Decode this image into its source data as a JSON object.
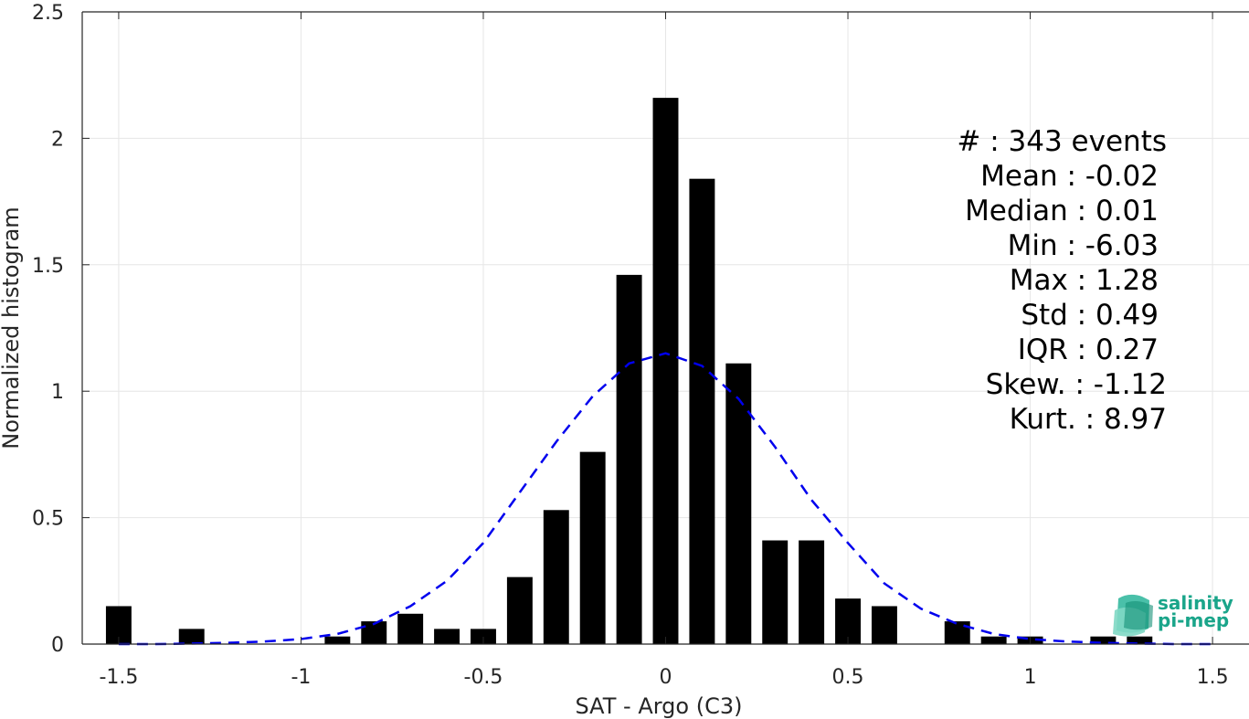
{
  "chart_data": {
    "type": "bar",
    "xlabel": "SAT - Argo (C3)",
    "ylabel": "Normalized histogram",
    "xlim": [
      -1.6,
      1.6
    ],
    "ylim": [
      0,
      2.5
    ],
    "x_ticks": [
      -1.5,
      -1,
      -0.5,
      0,
      0.5,
      1,
      1.5
    ],
    "x_tick_labels": [
      "-1.5",
      "-1",
      "-0.5",
      "0",
      "0.5",
      "1",
      "1.5"
    ],
    "y_ticks": [
      0,
      0.5,
      1,
      1.5,
      2,
      2.5
    ],
    "y_tick_labels": [
      "0",
      "0.5",
      "1",
      "1.5",
      "2",
      "2.5"
    ],
    "grid": true,
    "bar_width": 0.07,
    "bars": [
      {
        "x": -1.5,
        "y": 0.15
      },
      {
        "x": -1.3,
        "y": 0.06
      },
      {
        "x": -0.9,
        "y": 0.03
      },
      {
        "x": -0.8,
        "y": 0.09
      },
      {
        "x": -0.7,
        "y": 0.12
      },
      {
        "x": -0.6,
        "y": 0.06
      },
      {
        "x": -0.5,
        "y": 0.06
      },
      {
        "x": -0.4,
        "y": 0.265
      },
      {
        "x": -0.3,
        "y": 0.53
      },
      {
        "x": -0.2,
        "y": 0.76
      },
      {
        "x": -0.1,
        "y": 1.46
      },
      {
        "x": 0.0,
        "y": 2.16
      },
      {
        "x": 0.1,
        "y": 1.84
      },
      {
        "x": 0.2,
        "y": 1.11
      },
      {
        "x": 0.3,
        "y": 0.41
      },
      {
        "x": 0.4,
        "y": 0.41
      },
      {
        "x": 0.5,
        "y": 0.18
      },
      {
        "x": 0.6,
        "y": 0.15
      },
      {
        "x": 0.8,
        "y": 0.09
      },
      {
        "x": 0.9,
        "y": 0.03
      },
      {
        "x": 1.0,
        "y": 0.03
      },
      {
        "x": 1.2,
        "y": 0.03
      },
      {
        "x": 1.3,
        "y": 0.03
      }
    ],
    "fit_curve": {
      "style": "dashed",
      "color": "#0000ee",
      "x": [
        -1.5,
        -1.4,
        -1.3,
        -1.2,
        -1.1,
        -1.0,
        -0.9,
        -0.8,
        -0.7,
        -0.6,
        -0.5,
        -0.4,
        -0.3,
        -0.2,
        -0.1,
        0.0,
        0.1,
        0.2,
        0.3,
        0.4,
        0.5,
        0.6,
        0.7,
        0.8,
        0.9,
        1.0,
        1.1,
        1.2,
        1.3,
        1.4,
        1.5
      ],
      "y": [
        0.0,
        0.0,
        0.002,
        0.005,
        0.01,
        0.02,
        0.04,
        0.08,
        0.15,
        0.25,
        0.4,
        0.6,
        0.8,
        0.98,
        1.11,
        1.15,
        1.1,
        0.97,
        0.78,
        0.57,
        0.4,
        0.24,
        0.14,
        0.08,
        0.04,
        0.02,
        0.01,
        0.005,
        0.002,
        0.0,
        0.0
      ]
    },
    "stats": [
      {
        "label": "#  : 343 events"
      },
      {
        "label": "Mean : -0.02"
      },
      {
        "label": "Median : 0.01"
      },
      {
        "label": "Min : -6.03"
      },
      {
        "label": "Max : 1.28"
      },
      {
        "label": "Std : 0.49"
      },
      {
        "label": "IQR : 0.27"
      },
      {
        "label": "Skew. : -1.12"
      },
      {
        "label": "Kurt. : 8.97"
      }
    ]
  },
  "logo": {
    "line1": "salinity",
    "line2": "pi-mep",
    "color": "#1aa58a"
  }
}
